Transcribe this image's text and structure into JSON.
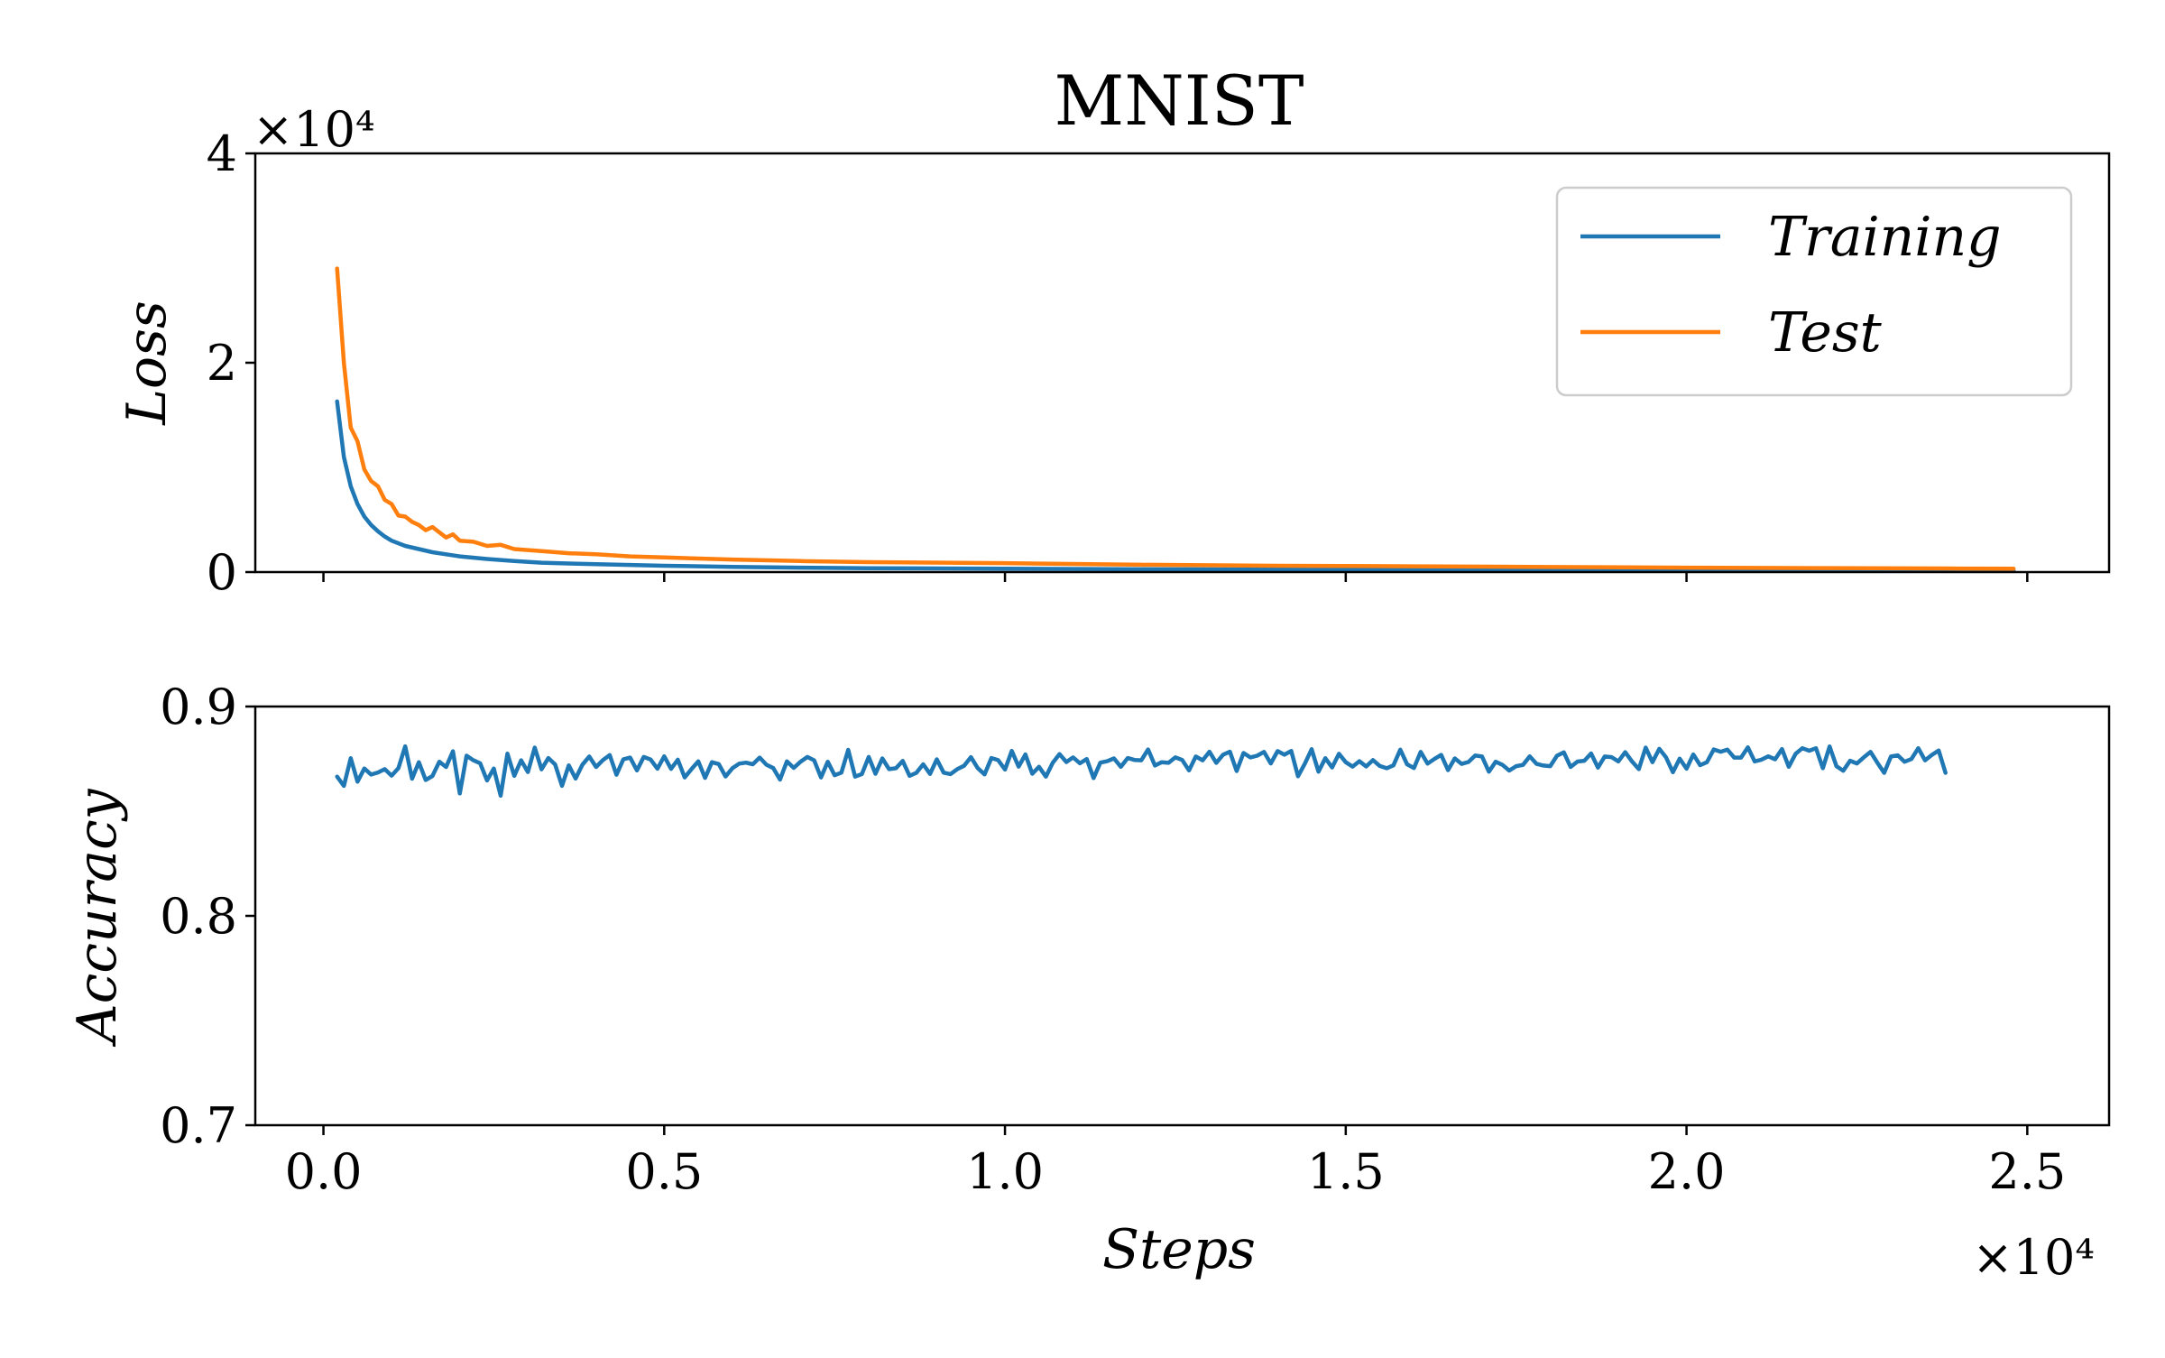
{
  "chart_data": [
    {
      "type": "line",
      "title": "MNIST",
      "xlabel": "",
      "ylabel": "Loss",
      "y_offset_label": "×10⁴",
      "xlim": [
        -1000,
        26200
      ],
      "ylim": [
        0,
        40000
      ],
      "yticks": [
        {
          "value": 0,
          "label": "0"
        },
        {
          "value": 20000,
          "label": "2"
        },
        {
          "value": 40000,
          "label": "4"
        }
      ],
      "xticks_shown": false,
      "grid": false,
      "legend_position": "top-right",
      "series": [
        {
          "name": "Training",
          "color": "#1f77b4",
          "x": [
            200,
            300,
            400,
            500,
            600,
            700,
            800,
            900,
            1000,
            1200,
            1400,
            1600,
            1800,
            2000,
            2400,
            2800,
            3200,
            3600,
            4000,
            5000,
            6000,
            7000,
            8000,
            10000,
            12000,
            14000,
            16000,
            18000,
            20000,
            22000,
            24000,
            24800
          ],
          "y": [
            16300,
            11000,
            8200,
            6500,
            5300,
            4500,
            3900,
            3400,
            3000,
            2500,
            2200,
            1900,
            1700,
            1500,
            1250,
            1050,
            900,
            820,
            750,
            600,
            500,
            420,
            370,
            320,
            270,
            240,
            210,
            190,
            170,
            150,
            140,
            130
          ]
        },
        {
          "name": "Test",
          "color": "#ff7f0e",
          "x": [
            200,
            300,
            400,
            500,
            600,
            700,
            800,
            900,
            1000,
            1100,
            1200,
            1300,
            1400,
            1500,
            1600,
            1700,
            1800,
            1900,
            2000,
            2200,
            2400,
            2600,
            2800,
            3000,
            3200,
            3600,
            4000,
            4500,
            5000,
            6000,
            7000,
            8000,
            10000,
            12000,
            14000,
            16000,
            18000,
            20000,
            22000,
            24000,
            24800
          ],
          "y": [
            29000,
            20000,
            13800,
            12500,
            9800,
            8700,
            8200,
            6900,
            6500,
            5400,
            5300,
            4800,
            4500,
            4000,
            4300,
            3800,
            3300,
            3600,
            3000,
            2900,
            2500,
            2600,
            2200,
            2100,
            2000,
            1800,
            1700,
            1500,
            1400,
            1200,
            1050,
            950,
            850,
            700,
            600,
            550,
            480,
            420,
            380,
            340,
            320
          ]
        }
      ]
    },
    {
      "type": "line",
      "title": "",
      "xlabel": "Steps",
      "ylabel": "Accuracy",
      "x_offset_label": "×10⁴",
      "xlim": [
        -1000,
        26200
      ],
      "ylim": [
        0.7,
        0.9
      ],
      "xticks": [
        {
          "value": 0,
          "label": "0.0"
        },
        {
          "value": 5000,
          "label": "0.5"
        },
        {
          "value": 10000,
          "label": "1.0"
        },
        {
          "value": 15000,
          "label": "1.5"
        },
        {
          "value": 20000,
          "label": "2.0"
        },
        {
          "value": 25000,
          "label": "2.5"
        }
      ],
      "yticks": [
        {
          "value": 0.7,
          "label": "0.7"
        },
        {
          "value": 0.8,
          "label": "0.8"
        },
        {
          "value": 0.9,
          "label": "0.9"
        }
      ],
      "grid": false,
      "series": [
        {
          "color": "#1f77b4",
          "x_start": 200,
          "x_step": 100,
          "y": [
            0.8665,
            0.8621,
            0.8753,
            0.8641,
            0.8704,
            0.8675,
            0.8685,
            0.8701,
            0.867,
            0.8706,
            0.881,
            0.8655,
            0.8734,
            0.8649,
            0.8668,
            0.8736,
            0.8711,
            0.8786,
            0.8585,
            0.8765,
            0.8743,
            0.8729,
            0.8647,
            0.8704,
            0.8574,
            0.8775,
            0.8669,
            0.8743,
            0.8687,
            0.8804,
            0.87,
            0.8754,
            0.8723,
            0.8621,
            0.8719,
            0.8656,
            0.8722,
            0.8761,
            0.8711,
            0.8744,
            0.8768,
            0.8674,
            0.8748,
            0.8756,
            0.8695,
            0.8759,
            0.8747,
            0.8703,
            0.8762,
            0.8702,
            0.8746,
            0.8661,
            0.8701,
            0.8738,
            0.8659,
            0.8734,
            0.8725,
            0.8666,
            0.8705,
            0.8727,
            0.8732,
            0.8724,
            0.8756,
            0.8722,
            0.8706,
            0.8651,
            0.8738,
            0.8707,
            0.8736,
            0.8759,
            0.8743,
            0.8661,
            0.8736,
            0.8672,
            0.8684,
            0.8793,
            0.8665,
            0.8677,
            0.8759,
            0.8679,
            0.8752,
            0.8701,
            0.8705,
            0.874,
            0.8669,
            0.8683,
            0.8724,
            0.8678,
            0.8748,
            0.8684,
            0.8677,
            0.8701,
            0.8717,
            0.8758,
            0.8706,
            0.8676,
            0.8754,
            0.8744,
            0.8699,
            0.8788,
            0.8713,
            0.8771,
            0.8679,
            0.8712,
            0.8665,
            0.8731,
            0.8773,
            0.8735,
            0.8757,
            0.8729,
            0.8749,
            0.8658,
            0.8732,
            0.8739,
            0.8752,
            0.8712,
            0.8754,
            0.8745,
            0.8743,
            0.8795,
            0.8718,
            0.8734,
            0.8731,
            0.8757,
            0.8745,
            0.8695,
            0.8761,
            0.8743,
            0.8784,
            0.8731,
            0.877,
            0.8784,
            0.8692,
            0.8778,
            0.8757,
            0.8765,
            0.8783,
            0.8728,
            0.8787,
            0.877,
            0.8788,
            0.8667,
            0.8727,
            0.8796,
            0.8689,
            0.8753,
            0.8709,
            0.8774,
            0.8734,
            0.8713,
            0.8739,
            0.8714,
            0.8744,
            0.8716,
            0.8705,
            0.8719,
            0.8794,
            0.8724,
            0.8706,
            0.8783,
            0.8727,
            0.8749,
            0.8769,
            0.8696,
            0.8752,
            0.8726,
            0.8735,
            0.8766,
            0.8761,
            0.8689,
            0.8736,
            0.8721,
            0.8694,
            0.8715,
            0.8721,
            0.8762,
            0.8726,
            0.8718,
            0.8715,
            0.8765,
            0.8781,
            0.8711,
            0.8737,
            0.8741,
            0.8776,
            0.8708,
            0.8761,
            0.8758,
            0.8738,
            0.8782,
            0.8738,
            0.8701,
            0.8804,
            0.8734,
            0.8798,
            0.8757,
            0.8686,
            0.8751,
            0.8703,
            0.8771,
            0.872,
            0.8734,
            0.8795,
            0.8784,
            0.8794,
            0.8756,
            0.8756,
            0.8805,
            0.8738,
            0.8746,
            0.8762,
            0.8748,
            0.8797,
            0.8712,
            0.8774,
            0.8801,
            0.8789,
            0.8801,
            0.8705,
            0.8809,
            0.8715,
            0.8693,
            0.8741,
            0.8728,
            0.8757,
            0.8783,
            0.8732,
            0.8683,
            0.8761,
            0.8767,
            0.8736,
            0.8749,
            0.8801,
            0.8743,
            0.8769,
            0.879,
            0.8683
          ]
        }
      ]
    }
  ]
}
